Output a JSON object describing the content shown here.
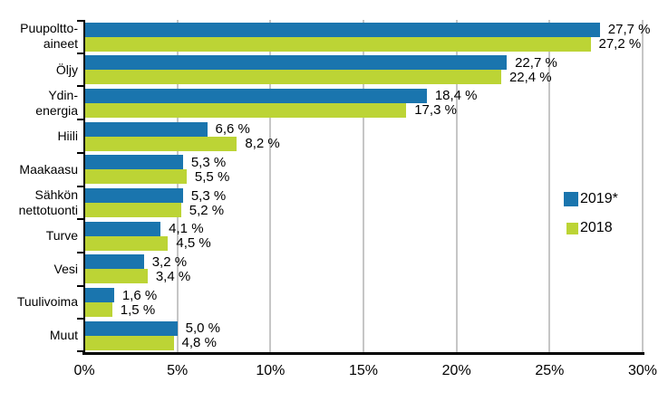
{
  "figure": {
    "background": "#FFFFFF",
    "text_color": "#000000"
  },
  "chart_data": {
    "type": "bar",
    "orientation": "horizontal",
    "categories": [
      "Puupoltto-\naineet",
      "Öljy",
      "Ydin-\nenergia",
      "Hiili",
      "Maakaasu",
      "Sähkön\nnettotuonti",
      "Turve",
      "Vesi",
      "Tuulivoima",
      "Muut"
    ],
    "series": [
      {
        "name": "2019*",
        "color": "#1A75AE",
        "values": [
          27.7,
          22.7,
          18.4,
          6.6,
          5.3,
          5.3,
          4.1,
          3.2,
          1.6,
          5.0
        ]
      },
      {
        "name": "2018",
        "color": "#BCD435",
        "values": [
          27.2,
          22.4,
          17.3,
          8.2,
          5.5,
          5.2,
          4.5,
          3.4,
          1.5,
          4.8
        ]
      }
    ],
    "value_label_suffix": " %",
    "decimal_separator": ",",
    "title": "",
    "xlabel": "",
    "ylabel": "",
    "xlim": [
      0,
      30
    ],
    "x_tick_step": 5,
    "x_tick_labels": [
      "0%",
      "5%",
      "10%",
      "15%",
      "20%",
      "25%",
      "30%"
    ],
    "grid": true,
    "gridline_color": "#C6C6C6",
    "axis_color": "#000000",
    "legend_position": "right-middle"
  }
}
